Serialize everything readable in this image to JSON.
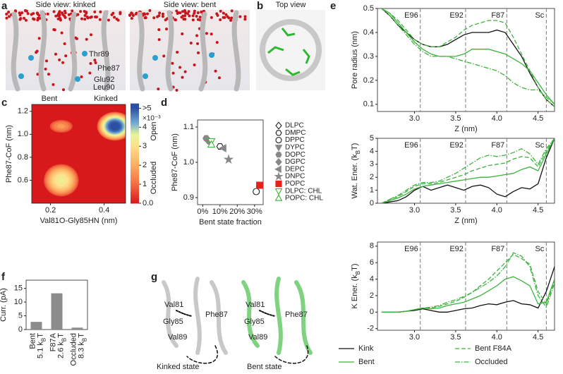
{
  "panel_letters": [
    "a",
    "b",
    "c",
    "d",
    "e",
    "f",
    "g"
  ],
  "panel_a": {
    "titles": [
      "Side view: kinked",
      "Side view: bent"
    ],
    "labels": [
      "Thr89",
      "Phe87",
      "Glu92",
      "Leu90"
    ]
  },
  "panel_b": {
    "title": "Top view"
  },
  "panel_g": {
    "labels": [
      "Val81",
      "Gly85",
      "Phe87",
      "Val89"
    ],
    "captions": [
      "Kinked state",
      "Bent state"
    ]
  },
  "chart_data": [
    {
      "type": "density",
      "xlabel": "Val81O-Gly85HN (nm)",
      "ylabel": "Phe87-CoF (nm)",
      "annotations": [
        "Bent",
        "Kinked"
      ],
      "x": [
        0.24,
        0.24,
        0.44
      ],
      "y": [
        0.6,
        1.07,
        1.07
      ],
      "values": [
        3.2,
        1.5,
        5.2
      ],
      "xlim": [
        0.13,
        0.48
      ],
      "xticks": [
        0.2,
        0.4
      ],
      "ylim": [
        0.4,
        1.26
      ],
      "yticks": [
        0.6,
        0.8,
        {
          "value": 1.0,
          "label": "1.0"
        },
        1.2
      ],
      "colorbar": {
        "lim": [
          0,
          5.2
        ],
        "ticks": [
          {
            "value": 0,
            "label": "0.0"
          },
          1,
          2,
          3,
          4,
          {
            "value": 5,
            "label": ">5"
          }
        ],
        "exponent": "×10⁻³",
        "labels": [
          "Open",
          "Occluded"
        ]
      }
    },
    {
      "type": "scatter",
      "xlabel": "Bent state fraction",
      "ylabel": "Phe87-CoF (nm)",
      "xlim": [
        -3,
        35
      ],
      "xticks": [
        {
          "value": 0,
          "label": "0%"
        },
        {
          "value": 10,
          "label": "10%"
        },
        {
          "value": 20,
          "label": "20%"
        },
        {
          "value": 30,
          "label": "30%"
        }
      ],
      "ylim": [
        0.88,
        1.12
      ],
      "yticks": [
        0.9,
        {
          "value": 1.0,
          "label": "1.0"
        },
        1.1
      ],
      "series": [
        {
          "name": "DLPC",
          "marker": "diamond",
          "color": "#222222",
          "filled": false,
          "x": [
            3
          ],
          "values": [
            1.063
          ]
        },
        {
          "name": "DMPC",
          "marker": "hexagon",
          "color": "#222222",
          "filled": false,
          "x": [
            10
          ],
          "values": [
            1.045
          ]
        },
        {
          "name": "DPPC",
          "marker": "circle",
          "color": "#222222",
          "filled": false,
          "x": [
            31
          ],
          "values": [
            0.917
          ]
        },
        {
          "name": "DYPC",
          "marker": "triangle-down",
          "color": "#888888",
          "filled": true,
          "x": [
            4
          ],
          "values": [
            1.058
          ]
        },
        {
          "name": "DOPC",
          "marker": "hexagon",
          "color": "#888888",
          "filled": true,
          "x": [
            2
          ],
          "values": [
            1.068
          ]
        },
        {
          "name": "DGPC",
          "marker": "diamond",
          "color": "#888888",
          "filled": true,
          "x": [
            3
          ],
          "values": [
            1.062
          ]
        },
        {
          "name": "DEPC",
          "marker": "triangle-left",
          "color": "#888888",
          "filled": true,
          "x": [
            12
          ],
          "values": [
            1.04
          ]
        },
        {
          "name": "DNPC",
          "marker": "star",
          "color": "#888888",
          "filled": true,
          "x": [
            15
          ],
          "values": [
            1.008
          ]
        },
        {
          "name": "POPC",
          "marker": "square",
          "color": "#e8201c",
          "filled": true,
          "x": [
            33
          ],
          "values": [
            0.935
          ]
        },
        {
          "name": "DLPC: CHL",
          "marker": "triangle-down",
          "color": "#3cb33c",
          "filled": false,
          "x": [
            5
          ],
          "values": [
            1.06
          ]
        },
        {
          "name": "POPC: CHL",
          "marker": "triangle-up",
          "color": "#3cb33c",
          "filled": false,
          "x": [
            5
          ],
          "values": [
            1.05
          ]
        }
      ]
    },
    {
      "type": "line",
      "xlabel": "Z (nm)",
      "ylabel": [
        "Pore radius (nm)"
      ],
      "x": [
        2.6,
        2.7,
        2.8,
        2.9,
        3.0,
        3.1,
        3.2,
        3.3,
        3.4,
        3.5,
        3.6,
        3.7,
        3.8,
        3.9,
        4.0,
        4.1,
        4.2,
        4.3,
        4.4,
        4.5,
        4.6,
        4.7
      ],
      "xlim": [
        2.55,
        4.7
      ],
      "xticks": [
        {
          "value": 3.0,
          "label": "3.0"
        },
        3.5,
        {
          "value": 4.0,
          "label": "4.0"
        },
        4.5
      ],
      "ylim": [
        0.07,
        0.5
      ],
      "yticks": [
        0.1,
        0.2,
        0.3,
        0.4,
        0.5
      ],
      "markers": {
        "x": [
          3.07,
          3.62,
          4.12,
          4.6
        ],
        "labels": [
          "E96",
          "E92",
          "F87",
          "Sc"
        ]
      },
      "series": [
        {
          "name": "Kink",
          "color": "#111111",
          "style": "solid",
          "values": [
            0.5,
            0.47,
            0.43,
            0.4,
            0.37,
            0.35,
            0.34,
            0.34,
            0.35,
            0.37,
            0.39,
            0.4,
            0.4,
            0.4,
            0.41,
            0.4,
            0.35,
            0.3,
            0.23,
            0.17,
            0.12,
            0.09
          ]
        },
        {
          "name": "Bent",
          "color": "#3cb33c",
          "style": "solid",
          "values": [
            0.5,
            0.48,
            0.44,
            0.4,
            0.36,
            0.33,
            0.31,
            0.3,
            0.3,
            0.3,
            0.31,
            0.33,
            0.33,
            0.33,
            0.32,
            0.31,
            0.29,
            0.27,
            0.24,
            0.19,
            0.14,
            0.1
          ]
        },
        {
          "name": "Bent F84A",
          "color": "#3cb33c",
          "style": "dashed",
          "values": [
            0.5,
            0.48,
            0.45,
            0.41,
            0.37,
            0.35,
            0.34,
            0.34,
            0.36,
            0.38,
            0.41,
            0.43,
            0.44,
            0.45,
            0.45,
            0.44,
            0.38,
            0.31,
            0.24,
            0.17,
            0.12,
            0.09
          ]
        },
        {
          "name": "Occluded",
          "color": "#3cb33c",
          "style": "dashdot",
          "values": [
            0.5,
            0.47,
            0.43,
            0.39,
            0.35,
            0.32,
            0.3,
            0.3,
            0.3,
            0.29,
            0.28,
            0.27,
            0.26,
            0.25,
            0.24,
            0.22,
            0.19,
            0.17,
            0.16,
            0.16,
            0.13,
            0.1
          ]
        }
      ]
    },
    {
      "type": "line",
      "xlabel": "Z (nm)",
      "ylabel": [
        "Wat. Ener. (k",
        "B",
        "T)"
      ],
      "x": [
        2.6,
        2.7,
        2.8,
        2.9,
        3.0,
        3.1,
        3.2,
        3.3,
        3.4,
        3.5,
        3.6,
        3.7,
        3.8,
        3.9,
        4.0,
        4.1,
        4.2,
        4.3,
        4.4,
        4.5,
        4.6,
        4.7
      ],
      "xlim": [
        2.55,
        4.7
      ],
      "xticks": [
        {
          "value": 3.0,
          "label": "3.0"
        },
        3.5,
        {
          "value": 4.0,
          "label": "4.0"
        },
        4.5
      ],
      "ylim": [
        0,
        5
      ],
      "yticks": [
        0,
        1,
        2,
        3,
        4,
        5
      ],
      "markers": {
        "x": [
          3.07,
          3.62,
          4.12,
          4.6
        ],
        "labels": [
          "E96",
          "E92",
          "F87",
          "Sc"
        ]
      },
      "series": [
        {
          "name": "Kink",
          "color": "#111111",
          "style": "solid",
          "values": [
            0.0,
            0.1,
            0.2,
            0.5,
            1.0,
            1.3,
            1.0,
            1.2,
            1.4,
            1.2,
            1.0,
            1.3,
            1.4,
            1.2,
            0.7,
            0.5,
            0.9,
            1.2,
            1.1,
            1.5,
            3.5,
            5.0
          ]
        },
        {
          "name": "Bent",
          "color": "#3cb33c",
          "style": "solid",
          "values": [
            0.0,
            0.2,
            0.4,
            0.7,
            1.1,
            1.3,
            1.4,
            1.5,
            1.6,
            1.7,
            1.8,
            1.9,
            2.0,
            2.0,
            2.1,
            2.2,
            2.3,
            2.6,
            2.8,
            2.5,
            3.8,
            5.0
          ]
        },
        {
          "name": "Bent F84A",
          "color": "#3cb33c",
          "style": "dashed",
          "values": [
            0.0,
            0.3,
            0.5,
            0.9,
            1.3,
            1.5,
            1.5,
            1.6,
            1.8,
            2.0,
            2.2,
            2.5,
            2.7,
            2.9,
            3.0,
            3.1,
            3.4,
            3.6,
            3.5,
            2.8,
            4.0,
            5.0
          ]
        },
        {
          "name": "Occluded",
          "color": "#3cb33c",
          "style": "dashdot",
          "values": [
            0.0,
            0.3,
            0.6,
            1.0,
            1.4,
            1.6,
            1.6,
            1.7,
            2.0,
            2.3,
            2.7,
            3.1,
            3.5,
            3.7,
            3.6,
            3.7,
            3.9,
            4.2,
            3.8,
            3.0,
            4.2,
            5.0
          ]
        }
      ]
    },
    {
      "type": "line",
      "xlabel": "Z (nm)",
      "ylabel": [
        "K Ener. (k",
        "B",
        "T)"
      ],
      "x": [
        2.6,
        2.7,
        2.8,
        2.9,
        3.0,
        3.1,
        3.2,
        3.3,
        3.4,
        3.5,
        3.6,
        3.7,
        3.8,
        3.9,
        4.0,
        4.1,
        4.2,
        4.3,
        4.4,
        4.5,
        4.6,
        4.7
      ],
      "xlim": [
        2.55,
        4.7
      ],
      "xticks": [
        {
          "value": 3.0,
          "label": "3.0"
        },
        3.5,
        {
          "value": 4.0,
          "label": "4.0"
        },
        4.5
      ],
      "ylim": [
        -2.2,
        8.5
      ],
      "yticks": [
        -2,
        0,
        2,
        4,
        6,
        8
      ],
      "markers": {
        "x": [
          3.07,
          3.62,
          4.12,
          4.6
        ],
        "labels": [
          "E96",
          "E92",
          "F87",
          "Sc"
        ]
      },
      "series": [
        {
          "name": "Kink",
          "color": "#111111",
          "style": "solid",
          "values": [
            0,
            0,
            0,
            0.1,
            0.2,
            0.4,
            0.2,
            0,
            0,
            0.2,
            0.4,
            0.5,
            0.8,
            1.0,
            0.9,
            1.2,
            1.4,
            1.0,
            0.9,
            0.5,
            2.5,
            5.5
          ]
        },
        {
          "name": "Bent",
          "color": "#3cb33c",
          "style": "solid",
          "values": [
            0,
            0,
            0,
            0.1,
            0.3,
            0.5,
            0.4,
            0.5,
            0.8,
            1.0,
            1.2,
            1.6,
            2.0,
            2.6,
            3.2,
            4.0,
            4.3,
            3.8,
            3.2,
            1.0,
            1.2,
            4.0
          ]
        },
        {
          "name": "Bent F84A",
          "color": "#3cb33c",
          "style": "dashed",
          "values": [
            0,
            0,
            0,
            0.1,
            0.3,
            0.5,
            0.5,
            0.7,
            1.0,
            1.3,
            1.8,
            2.4,
            3.2,
            4.0,
            5.0,
            6.0,
            7.0,
            6.5,
            5.8,
            2.5,
            1.0,
            3.8
          ]
        },
        {
          "name": "Occluded",
          "color": "#3cb33c",
          "style": "dashdot",
          "values": [
            0,
            0,
            0,
            0.1,
            0.3,
            0.5,
            0.6,
            0.8,
            1.2,
            1.5,
            1.9,
            2.4,
            3.0,
            3.6,
            4.4,
            5.5,
            7.2,
            6.8,
            5.5,
            2.0,
            0.6,
            3.5
          ]
        }
      ]
    },
    {
      "type": "bar",
      "ylabel": "Curr. (pA)",
      "categories": [
        "Bent",
        "F87A",
        "Occluded"
      ],
      "category_notes": [
        [
          "5.1 k",
          "B",
          "T"
        ],
        [
          "2.6 k",
          "B",
          "T"
        ],
        [
          "8.3 k",
          "B",
          "T"
        ]
      ],
      "values": [
        2.8,
        13.2,
        0.7
      ],
      "color": "#8c8c8c",
      "ylim": [
        0,
        18
      ],
      "yticks": [
        0,
        5,
        10,
        15
      ]
    }
  ]
}
